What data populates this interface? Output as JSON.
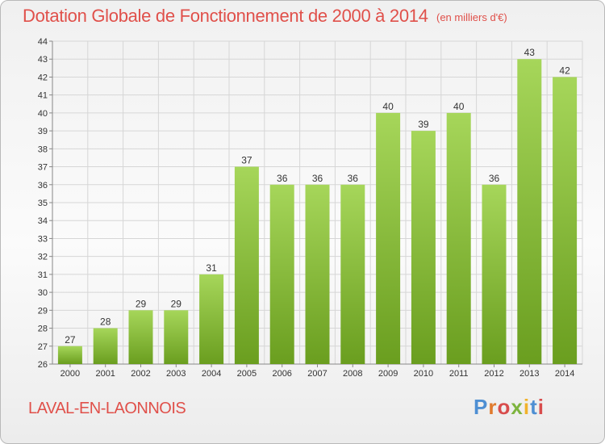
{
  "title": "Dotation Globale de Fonctionnement de 2000 à 2014",
  "unit_note": "(en milliers d'€)",
  "commune": "LAVAL-EN-LAONNOIS",
  "logo": {
    "text": "Proxiti",
    "letter_colors": [
      "#4e8fd3",
      "#e07b2e",
      "#d84c4c",
      "#7db43e",
      "#f1b22b",
      "#4e8fd3",
      "#d84c4c"
    ]
  },
  "colors": {
    "title": "#e0504a",
    "bar_top": "#a6d65a",
    "bar_bottom": "#6a9e1f",
    "grid": "#d6d6d6"
  },
  "chart_data": {
    "type": "bar",
    "title": "Dotation Globale de Fonctionnement de 2000 à 2014",
    "subtitle": "(en milliers d'€)",
    "xlabel": "",
    "ylabel": "",
    "categories": [
      "2000",
      "2001",
      "2002",
      "2003",
      "2004",
      "2005",
      "2006",
      "2007",
      "2008",
      "2009",
      "2010",
      "2011",
      "2012",
      "2013",
      "2014"
    ],
    "values": [
      27,
      28,
      29,
      29,
      31,
      37,
      36,
      36,
      36,
      40,
      39,
      40,
      36,
      43,
      42
    ],
    "ylim": [
      26,
      44
    ],
    "yticks": [
      26,
      27,
      28,
      29,
      30,
      31,
      32,
      33,
      34,
      35,
      36,
      37,
      38,
      39,
      40,
      41,
      42,
      43,
      44
    ],
    "grid": true,
    "data_labels": true
  }
}
